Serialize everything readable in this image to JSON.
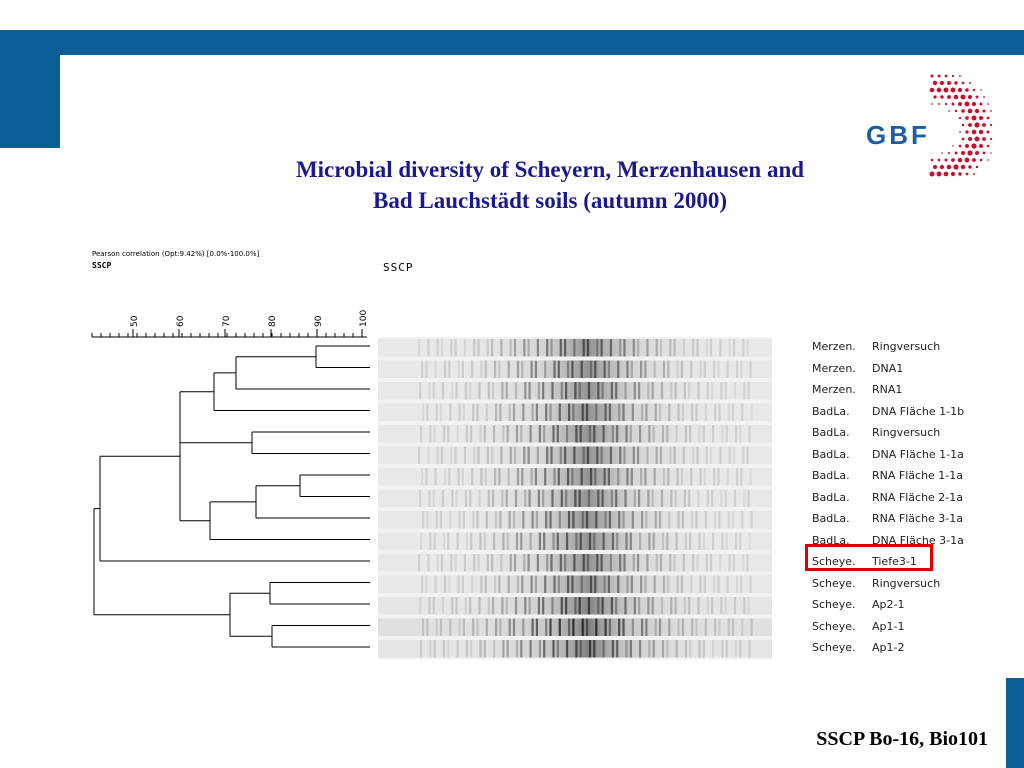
{
  "theme": {
    "accent": "#0a5f96",
    "title_color": "#1a1a8c",
    "highlight": "#e00000",
    "logo_red": "#c8102e",
    "logo_blue": "#1b5ea6"
  },
  "logo": {
    "text": "GBF"
  },
  "title": {
    "line1": "Microbial diversity of Scheyern, Merzenhausen and",
    "line2": "Bad Lauchstädt soils (autumn 2000)"
  },
  "figure": {
    "caption_small": "Pearson correlation (Opt:9.42%) [0.0%-100.0%]",
    "caption_bold": "SSCP",
    "gel_label": "SSCP",
    "scale_ticks": [
      "50",
      "60",
      "70",
      "80",
      "90",
      "100"
    ],
    "samples": [
      {
        "site": "Merzen.",
        "sample": "Ringversuch"
      },
      {
        "site": "Merzen.",
        "sample": "DNA1"
      },
      {
        "site": "Merzen.",
        "sample": "RNA1"
      },
      {
        "site": "BadLa.",
        "sample": "DNA Fläche 1-1b"
      },
      {
        "site": "BadLa.",
        "sample": "Ringversuch"
      },
      {
        "site": "BadLa.",
        "sample": "DNA Fläche 1-1a"
      },
      {
        "site": "BadLa.",
        "sample": "RNA Fläche 1-1a"
      },
      {
        "site": "BadLa.",
        "sample": "RNA Fläche 2-1a"
      },
      {
        "site": "BadLa.",
        "sample": "RNA Fläche 3-1a"
      },
      {
        "site": "BadLa.",
        "sample": "DNA Fläche 3-1a"
      },
      {
        "site": "Scheye.",
        "sample": "Tiefe3-1"
      },
      {
        "site": "Scheye.",
        "sample": "Ringversuch"
      },
      {
        "site": "Scheye.",
        "sample": "Ap2-1"
      },
      {
        "site": "Scheye.",
        "sample": "Ap1-1"
      },
      {
        "site": "Scheye.",
        "sample": "Ap1-2"
      }
    ],
    "highlighted_index": 10
  },
  "footer": {
    "text": "SSCP Bo-16, Bio101"
  }
}
